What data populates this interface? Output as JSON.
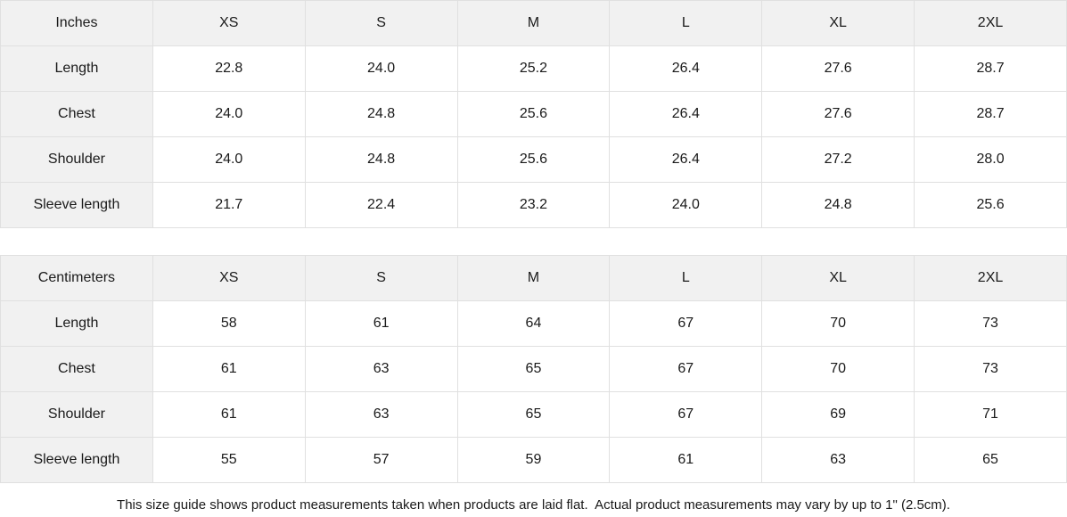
{
  "colors": {
    "header_cell_bg": "#f1f1f1",
    "grid_border": "#e0e0e0",
    "text": "#1a1a1a",
    "page_bg": "#ffffff"
  },
  "size_guide": {
    "inches": {
      "unit_label": "Inches",
      "columns": [
        "XS",
        "S",
        "M",
        "L",
        "XL",
        "2XL"
      ],
      "rows": [
        {
          "label": "Length",
          "values": [
            "22.8",
            "24.0",
            "25.2",
            "26.4",
            "27.6",
            "28.7"
          ]
        },
        {
          "label": "Chest",
          "values": [
            "24.0",
            "24.8",
            "25.6",
            "26.4",
            "27.6",
            "28.7"
          ]
        },
        {
          "label": "Shoulder",
          "values": [
            "24.0",
            "24.8",
            "25.6",
            "26.4",
            "27.2",
            "28.0"
          ]
        },
        {
          "label": "Sleeve length",
          "values": [
            "21.7",
            "22.4",
            "23.2",
            "24.0",
            "24.8",
            "25.6"
          ]
        }
      ]
    },
    "centimeters": {
      "unit_label": "Centimeters",
      "columns": [
        "XS",
        "S",
        "M",
        "L",
        "XL",
        "2XL"
      ],
      "rows": [
        {
          "label": "Length",
          "values": [
            "58",
            "61",
            "64",
            "67",
            "70",
            "73"
          ]
        },
        {
          "label": "Chest",
          "values": [
            "61",
            "63",
            "65",
            "67",
            "70",
            "73"
          ]
        },
        {
          "label": "Shoulder",
          "values": [
            "61",
            "63",
            "65",
            "67",
            "69",
            "71"
          ]
        },
        {
          "label": "Sleeve length",
          "values": [
            "55",
            "57",
            "59",
            "61",
            "63",
            "65"
          ]
        }
      ]
    },
    "footer_note": "This size guide shows product measurements taken when products are laid flat.  Actual product measurements may vary by up to 1\" (2.5cm)."
  }
}
